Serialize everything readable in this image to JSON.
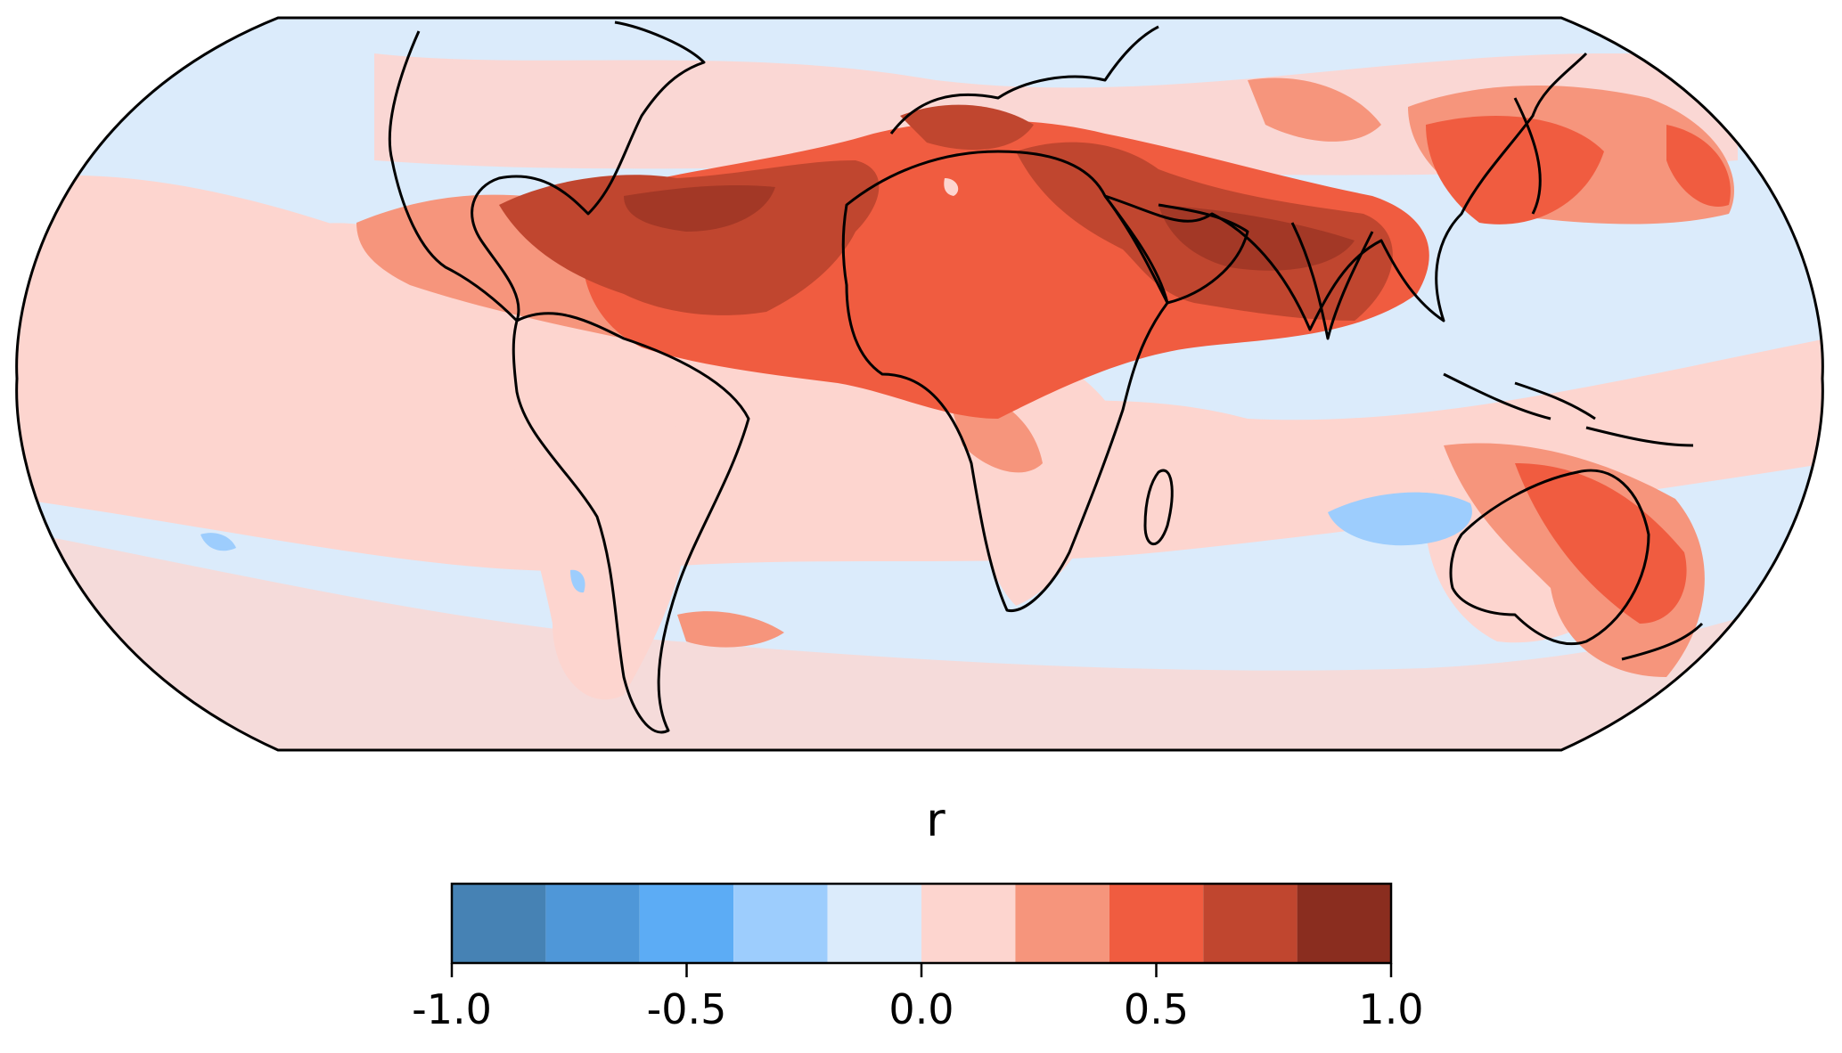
{
  "map": {
    "projection": "Robinson-like global",
    "colormap_name": "diverging blue-red",
    "regions": [
      "North Atlantic / Caribbean tropical band",
      "Sahara and North Africa",
      "Arabian Peninsula",
      "India",
      "East Asia",
      "Australia",
      "Southern Indian Ocean",
      "South Atlantic"
    ]
  },
  "colorbar": {
    "title": "r",
    "min": -1.0,
    "max": 1.0,
    "boundaries": [
      -1.0,
      -0.8,
      -0.6,
      -0.4,
      -0.2,
      0.0,
      0.2,
      0.4,
      0.6,
      0.8,
      1.0
    ],
    "colors": [
      "#4682b4",
      "#4f97d8",
      "#5cacf5",
      "#9dcdfd",
      "#dbebfb",
      "#fdd5cf",
      "#f6957c",
      "#f05c40",
      "#c0462f",
      "#8a2d1f"
    ],
    "ticks": [
      {
        "value": -1.0,
        "label": "-1.0"
      },
      {
        "value": -0.5,
        "label": "-0.5"
      },
      {
        "value": 0.0,
        "label": "0.0"
      },
      {
        "value": 0.5,
        "label": "0.5"
      },
      {
        "value": 1.0,
        "label": "1.0"
      }
    ]
  }
}
